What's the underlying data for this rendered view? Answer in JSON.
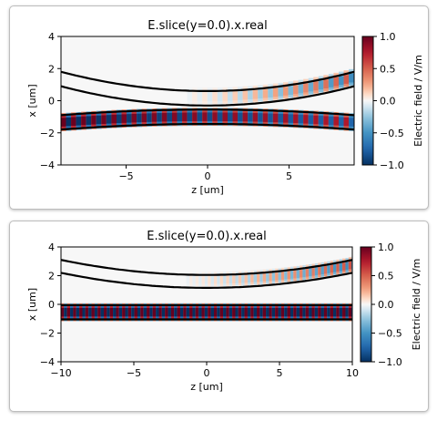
{
  "chart_data": [
    {
      "type": "heatmap",
      "title": "E.slice(y=0.0).x.real",
      "xlabel": "z [um]",
      "ylabel": "x [um]",
      "xlim": [
        -9,
        9
      ],
      "ylim": [
        -4,
        4
      ],
      "x_ticks": [
        -5,
        0,
        5
      ],
      "y_ticks": [
        -4,
        -2,
        0,
        2,
        4
      ],
      "colorbar": {
        "label": "Electric field / V/m",
        "min": -1.0,
        "max": 1.0,
        "ticks": [
          "1.0",
          "0.5",
          "0.0",
          "−0.5",
          "−1.0"
        ]
      },
      "waveguides": {
        "lower_guide": {
          "center_at_z0": -1.0,
          "center_at_edges": -1.35,
          "width": 0.9
        },
        "upper_guide": {
          "center_at_z0": 0.15,
          "center_at_edges": 1.35,
          "width": 0.9
        }
      },
      "field": {
        "period": 0.62,
        "lower_amplitude_edge": 1.0,
        "lower_amplitude_end": 0.75,
        "upper_amplitude_end": 0.55
      }
    },
    {
      "type": "heatmap",
      "title": "E.slice(y=0.0).x.real",
      "xlabel": "z [um]",
      "ylabel": "x [um]",
      "xlim": [
        -10,
        10
      ],
      "ylim": [
        -4,
        4
      ],
      "x_ticks": [
        -10,
        -5,
        0,
        5,
        10
      ],
      "y_ticks": [
        -4,
        -2,
        0,
        2,
        4
      ],
      "colorbar": {
        "label": "Electric field / V/m",
        "min": -1.0,
        "max": 1.0,
        "ticks": [
          "1.0",
          "0.5",
          "0.0",
          "−0.5",
          "−1.0"
        ]
      },
      "waveguides": {
        "lower_guide": {
          "center_at_z0": -0.55,
          "center_at_edges": -0.55,
          "width": 1.0
        },
        "upper_guide": {
          "center_at_z0": 1.6,
          "center_at_edges": 2.65,
          "width": 0.9
        }
      },
      "field": {
        "period": 0.42,
        "lower_amplitude_edge": 1.0,
        "lower_amplitude_end": 1.0,
        "upper_amplitude_end": 0.55
      }
    }
  ]
}
